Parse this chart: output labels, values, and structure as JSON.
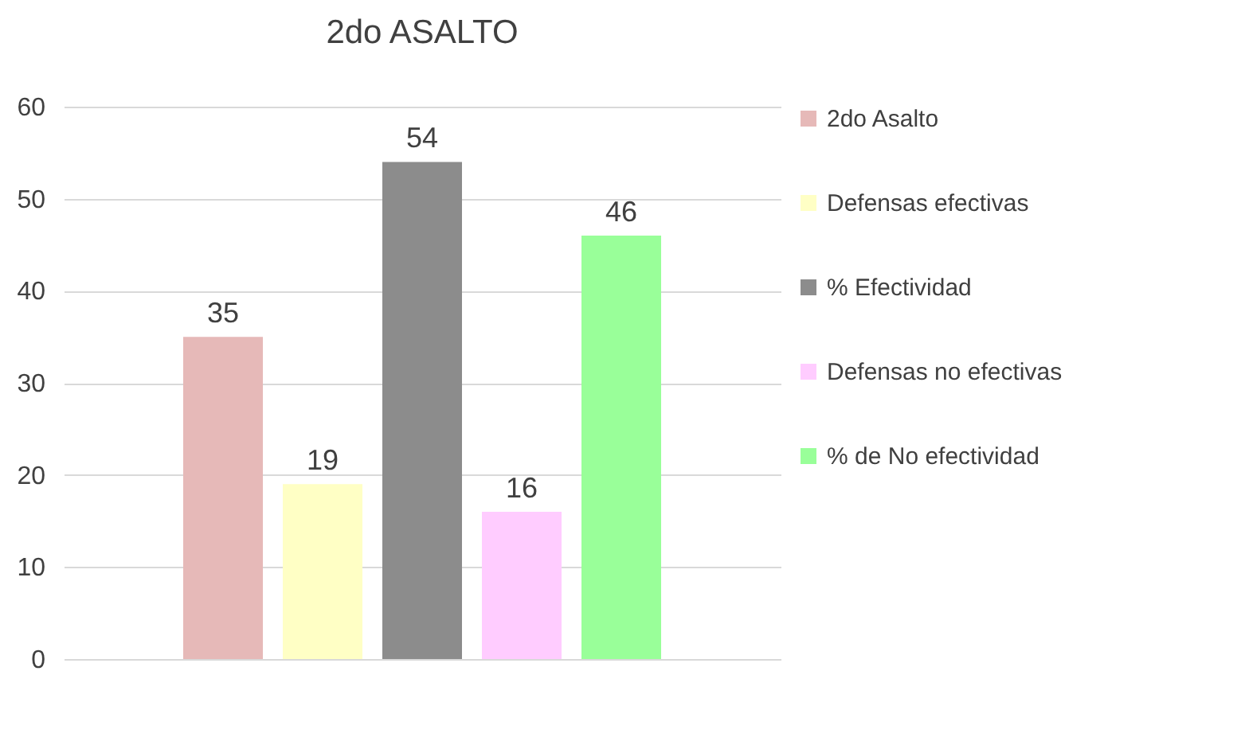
{
  "chart_data": {
    "type": "bar",
    "title": "2do ASALTO",
    "categories": [
      null
    ],
    "series": [
      {
        "name": "2do Asalto",
        "color": "#e6b9b8",
        "values": [
          35
        ]
      },
      {
        "name": "Defensas efectivas",
        "color": "#ffffc5",
        "values": [
          19
        ]
      },
      {
        "name": "% Efectividad",
        "color": "#8c8c8c",
        "values": [
          54
        ]
      },
      {
        "name": "Defensas no efectivas",
        "color": "#ffccff",
        "values": [
          16
        ]
      },
      {
        "name": "% de No efectividad",
        "color": "#99ff99",
        "values": [
          46
        ]
      }
    ],
    "ylim": [
      0,
      60
    ],
    "yticks": [
      0,
      10,
      20,
      30,
      40,
      50,
      60
    ],
    "grid": "y",
    "legend": "right",
    "data_labels": true
  }
}
